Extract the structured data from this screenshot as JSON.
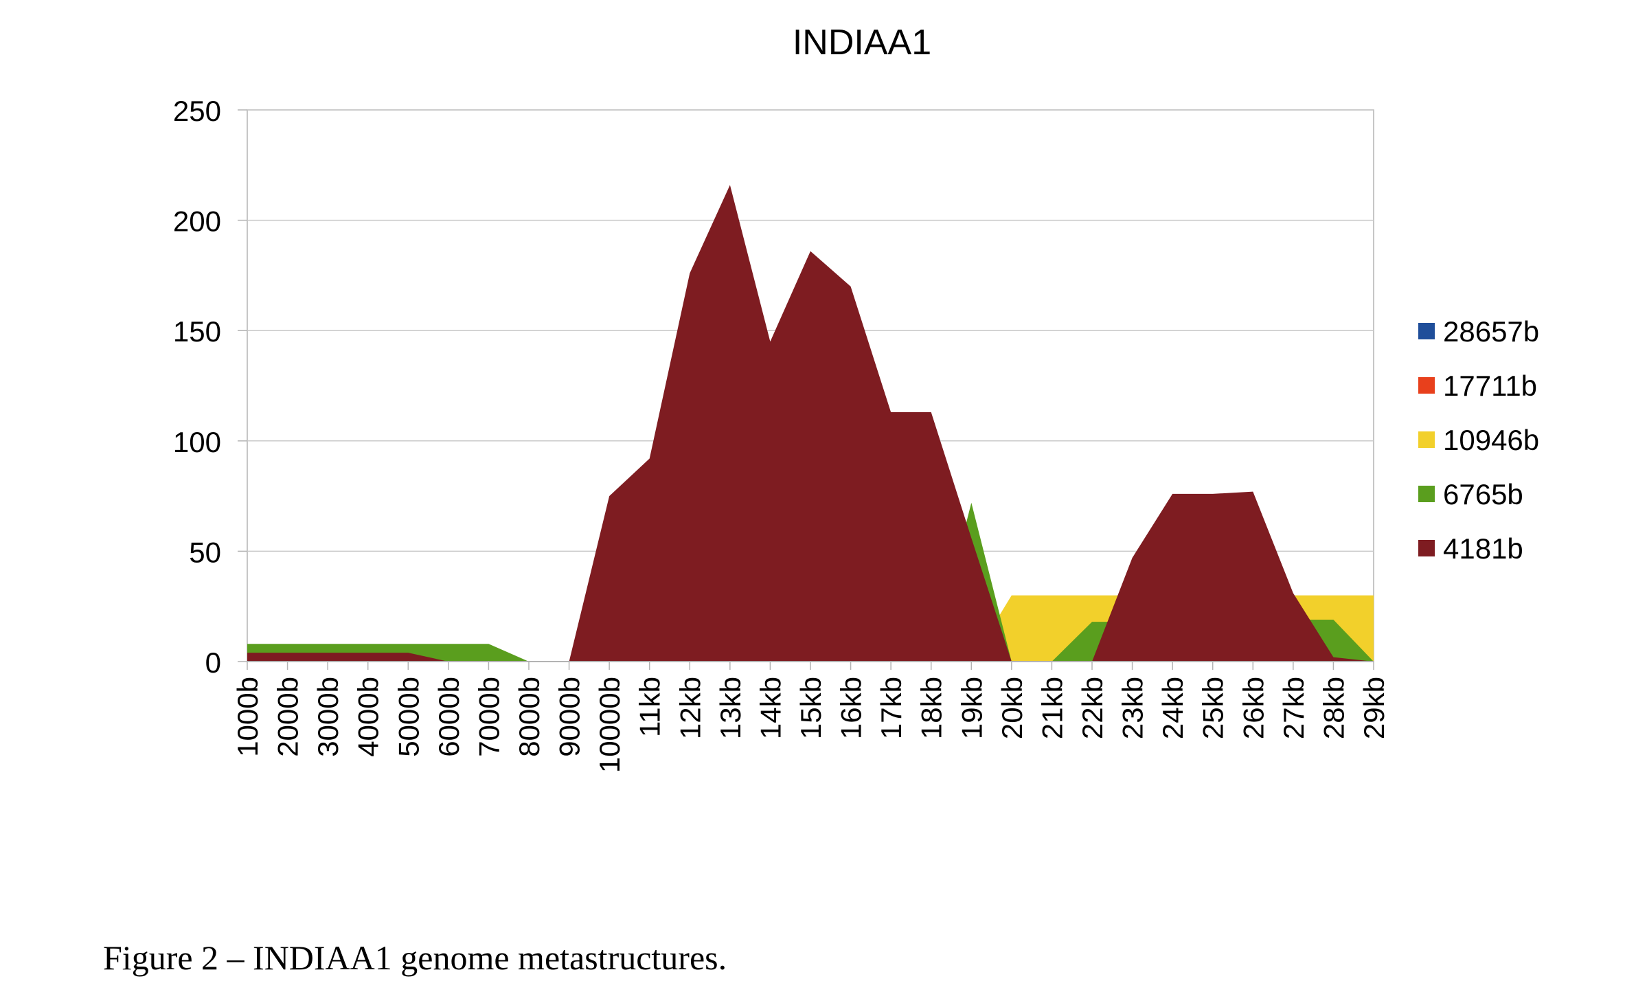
{
  "chart_data": {
    "type": "area",
    "title": "INDIAA1",
    "xlabel": "",
    "ylabel": "",
    "ylim": [
      0,
      250
    ],
    "yticks": [
      0,
      50,
      100,
      150,
      200,
      250
    ],
    "grid": true,
    "legend_position": "right",
    "categories": [
      "1000b",
      "2000b",
      "3000b",
      "4000b",
      "5000b",
      "6000b",
      "7000b",
      "8000b",
      "9000b",
      "10000b",
      "11kb",
      "12kb",
      "13kb",
      "14kb",
      "15kb",
      "16kb",
      "17kb",
      "18kb",
      "19kb",
      "20kb",
      "21kb",
      "22kb",
      "23kb",
      "24kb",
      "25kb",
      "26kb",
      "27kb",
      "28kb",
      "29kb"
    ],
    "series": [
      {
        "name": "28657b",
        "color": "#1f4e9a",
        "values": [
          0,
          0,
          0,
          0,
          0,
          0,
          0,
          0,
          0,
          0,
          0,
          0,
          0,
          0,
          0,
          0,
          0,
          0,
          0,
          0,
          0,
          0,
          0,
          0,
          0,
          0,
          0,
          0,
          0
        ]
      },
      {
        "name": "17711b",
        "color": "#e8401c",
        "values": [
          0,
          0,
          0,
          0,
          0,
          0,
          0,
          0,
          0,
          0,
          0,
          0,
          0,
          0,
          0,
          0,
          0,
          0,
          0,
          0,
          0,
          0,
          0,
          0,
          0,
          0,
          0,
          0,
          0
        ]
      },
      {
        "name": "10946b",
        "color": "#f2d02b",
        "values": [
          0,
          0,
          0,
          0,
          0,
          0,
          0,
          0,
          0,
          0,
          0,
          0,
          0,
          0,
          0,
          0,
          0,
          0,
          0,
          30,
          30,
          30,
          30,
          30,
          30,
          30,
          30,
          30,
          30
        ]
      },
      {
        "name": "6765b",
        "color": "#5a9e1e",
        "values": [
          8,
          8,
          8,
          8,
          8,
          8,
          8,
          0,
          0,
          0,
          0,
          0,
          0,
          0,
          0,
          0,
          0,
          0,
          72,
          0,
          0,
          18,
          18,
          0,
          0,
          0,
          19,
          19,
          0
        ]
      },
      {
        "name": "4181b",
        "color": "#7e1c21",
        "values": [
          4,
          4,
          4,
          4,
          4,
          0,
          0,
          0,
          0,
          75,
          92,
          176,
          216,
          145,
          186,
          170,
          113,
          113,
          56,
          0,
          0,
          0,
          47,
          76,
          76,
          77,
          31,
          2,
          0
        ]
      }
    ]
  },
  "caption": "Figure 2 – INDIAA1 genome metastructures."
}
